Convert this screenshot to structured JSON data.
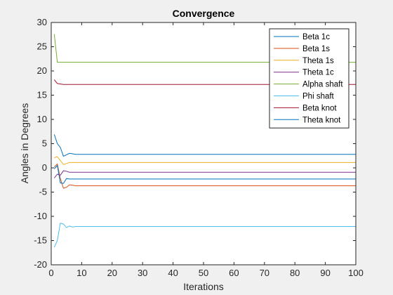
{
  "chart_data": {
    "type": "line",
    "title": "Convergence",
    "xlabel": "Iterations",
    "ylabel": "Angles in Degrees",
    "xlim": [
      0,
      100
    ],
    "ylim": [
      -20,
      30
    ],
    "xticks": [
      0,
      10,
      20,
      30,
      40,
      50,
      60,
      70,
      80,
      90,
      100
    ],
    "yticks": [
      -20,
      -15,
      -10,
      -5,
      0,
      5,
      10,
      15,
      20,
      25,
      30
    ],
    "grid": false,
    "legend_position": "top-right",
    "series": [
      {
        "name": "Beta 1c",
        "color": "#0072BD",
        "x": [
          1,
          2,
          3,
          4,
          5,
          6,
          7,
          8,
          10,
          100
        ],
        "y": [
          6.9,
          5.0,
          4.2,
          2.4,
          2.7,
          3.0,
          2.9,
          2.8,
          2.8,
          2.8
        ]
      },
      {
        "name": "Beta 1s",
        "color": "#D95319",
        "x": [
          1,
          2,
          3,
          4,
          5,
          6,
          7,
          8,
          10,
          100
        ],
        "y": [
          0.2,
          0.8,
          -2.2,
          -4.2,
          -4.0,
          -3.5,
          -3.6,
          -3.7,
          -3.7,
          -3.7
        ]
      },
      {
        "name": "Theta 1s",
        "color": "#EDB120",
        "x": [
          1,
          2,
          3,
          4,
          5,
          6,
          7,
          8,
          10,
          100
        ],
        "y": [
          2.1,
          2.3,
          1.5,
          0.7,
          0.9,
          1.1,
          1.1,
          1.1,
          1.1,
          1.1
        ]
      },
      {
        "name": "Theta 1c",
        "color": "#7E2F8E",
        "x": [
          1,
          2,
          3,
          4,
          5,
          6,
          7,
          8,
          10,
          100
        ],
        "y": [
          -2.1,
          -1.3,
          -1.5,
          -0.6,
          -0.7,
          -0.9,
          -0.9,
          -0.9,
          -0.9,
          -0.9
        ]
      },
      {
        "name": "Alpha shaft",
        "color": "#77AC30",
        "x": [
          1,
          2,
          3,
          4,
          5,
          6,
          8,
          10,
          100
        ],
        "y": [
          27.6,
          21.8,
          21.8,
          21.8,
          21.8,
          21.8,
          21.8,
          21.8,
          21.8
        ]
      },
      {
        "name": "Phi shaft",
        "color": "#4DBEEE",
        "x": [
          1,
          2,
          3,
          4,
          5,
          6,
          7,
          8,
          10,
          100
        ],
        "y": [
          -16.4,
          -15.0,
          -11.4,
          -11.6,
          -12.3,
          -12.0,
          -12.2,
          -12.1,
          -12.1,
          -12.1
        ]
      },
      {
        "name": "Beta knot",
        "color": "#A2142F",
        "x": [
          1,
          2,
          3,
          4,
          5,
          6,
          8,
          10,
          100
        ],
        "y": [
          18.2,
          17.4,
          17.3,
          17.2,
          17.2,
          17.2,
          17.2,
          17.2,
          17.2
        ]
      },
      {
        "name": "Theta knot",
        "color": "#0072BD",
        "x": [
          1,
          2,
          3,
          4,
          5,
          6,
          7,
          8,
          10,
          100
        ],
        "y": [
          -0.2,
          0.5,
          -3.1,
          -3.2,
          -2.2,
          -2.3,
          -2.3,
          -2.3,
          -2.3,
          -2.3
        ]
      }
    ]
  }
}
